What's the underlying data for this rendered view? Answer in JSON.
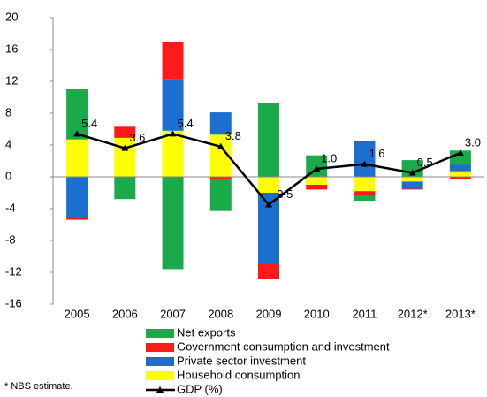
{
  "chart_data": {
    "type": "bar",
    "categories": [
      "2005",
      "2006",
      "2007",
      "2008",
      "2009",
      "2010",
      "2011",
      "2012*",
      "2013*"
    ],
    "series": [
      {
        "name": "Net exports",
        "color": "#1aaa4a",
        "values": [
          6.3,
          -2.8,
          -11.6,
          -3.9,
          9.3,
          2.7,
          -0.7,
          2.1,
          1.8
        ]
      },
      {
        "name": "Government consumption and investment",
        "color": "#ff1a1a",
        "values": [
          -0.2,
          1.4,
          4.7,
          -0.4,
          -1.8,
          -0.6,
          -0.5,
          -0.1,
          -0.3
        ]
      },
      {
        "name": "Private sector investment",
        "color": "#1a6fcf",
        "values": [
          -5.2,
          0,
          6.5,
          2.8,
          -9,
          0,
          4.5,
          -0.9,
          0.8
        ]
      },
      {
        "name": "Household consumption",
        "color": "#ffff00",
        "values": [
          4.7,
          4.9,
          5.8,
          5.3,
          -2,
          -1,
          -1.8,
          -0.6,
          0.7
        ]
      },
      {
        "name": "GDP (%)",
        "type": "line",
        "color": "#000000",
        "values": [
          5.4,
          3.6,
          5.4,
          3.8,
          -3.5,
          1.0,
          1.6,
          0.5,
          3.0
        ],
        "value_labels": [
          "5.4",
          "3.6",
          "5.4",
          "3.8",
          "-3.5",
          "1.0",
          "1.6",
          "0.5",
          "3.0"
        ]
      }
    ],
    "ylim": [
      -16,
      20
    ],
    "yticks": [
      -16,
      -12,
      -8,
      -4,
      0,
      4,
      8,
      12,
      16,
      20
    ],
    "stacked": true,
    "grid": false,
    "footnote": "* NBS estimate."
  }
}
